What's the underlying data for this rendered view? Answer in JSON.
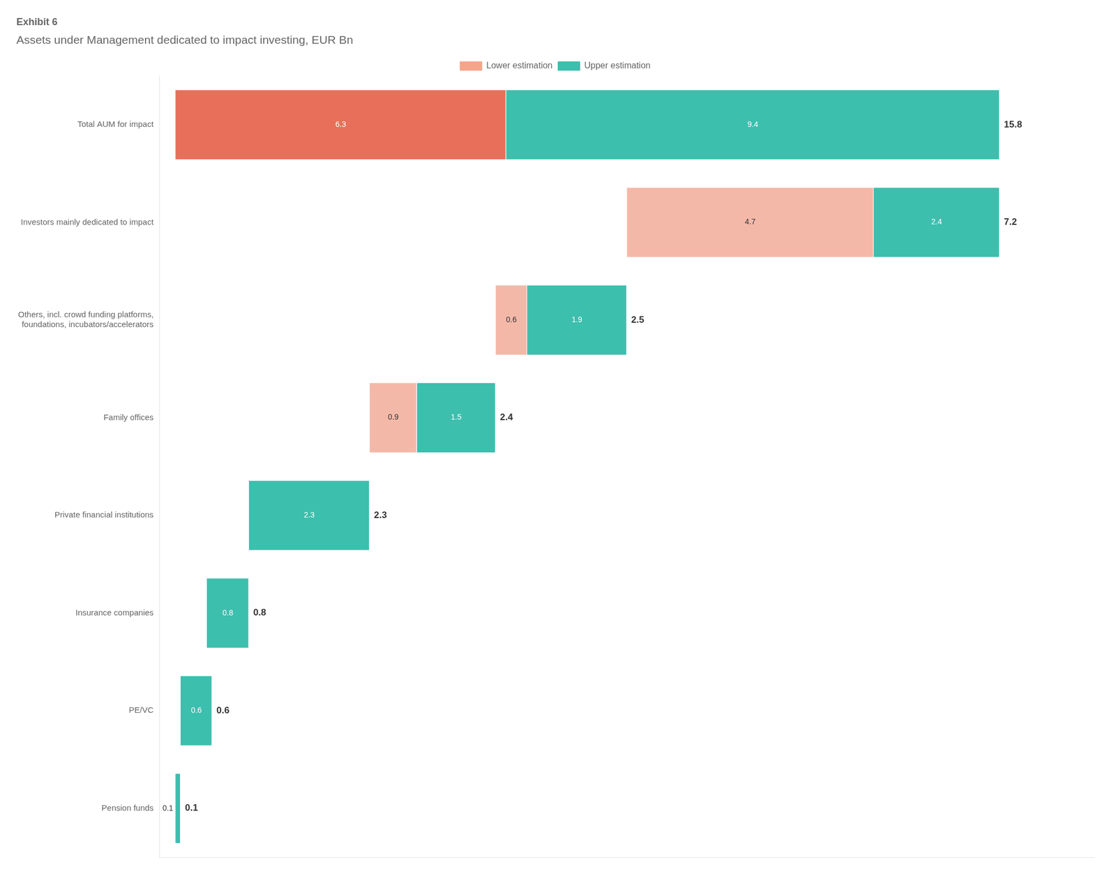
{
  "chart_data": {
    "type": "bar",
    "orientation": "horizontal",
    "stacked": true,
    "subtitle": "Exhibit 6",
    "title": "Assets under Management dedicated to impact investing, EUR Bn",
    "categories": [
      "Total AUM for impact",
      "Investors mainly dedicated to impact",
      "Others, incl. crowd funding platforms,\nfoundations, incubators/accelerators",
      "Family offices",
      "Private financial institutions",
      "Insurance companies",
      "PE/VC",
      "Pension funds"
    ],
    "offsets": [
      0.0,
      8.6,
      6.1,
      3.7,
      1.4,
      0.6,
      0.1,
      0.0
    ],
    "series": [
      {
        "name": "Lower estimation",
        "color": "#f4a58a",
        "colors": [
          "#e8705a",
          "#f4b8a8",
          "#f4b8a8",
          "#f4b8a8",
          "#f4b8a8",
          "#f4b8a8",
          "#f4b8a8",
          "#f4b8a8"
        ],
        "values": [
          6.3,
          4.7,
          0.6,
          0.9,
          0.0,
          0.0,
          0.0,
          0.0
        ]
      },
      {
        "name": "Upper estimation",
        "color": "#3dbfad",
        "values": [
          9.4,
          2.4,
          1.9,
          1.5,
          2.3,
          0.8,
          0.6,
          0.1
        ]
      }
    ],
    "totals": [
      15.8,
      7.2,
      2.5,
      2.4,
      2.3,
      0.8,
      0.6,
      0.1
    ],
    "xlim": [
      -0.3,
      17.5
    ],
    "grid": false,
    "legend": "top",
    "data_labels": true,
    "tick_labels": "y"
  }
}
